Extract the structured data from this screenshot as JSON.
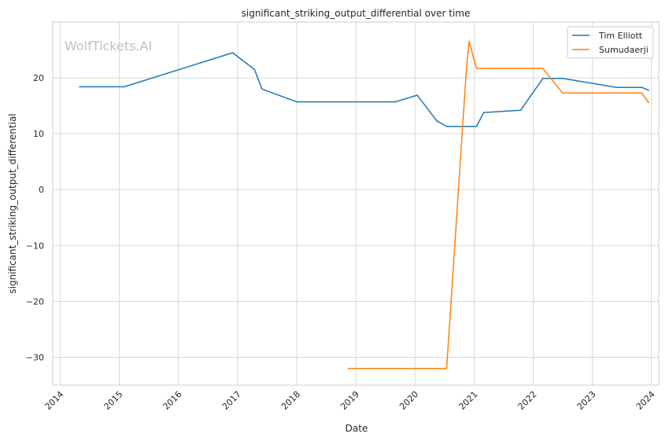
{
  "chart_data": {
    "type": "line",
    "title": "significant_striking_output_differential over time",
    "xlabel": "Date",
    "ylabel": "significant_striking_output_differential",
    "watermark": "WolfTickets.AI",
    "x_type": "date",
    "xlim": [
      "2013-11-16",
      "2024-02-15"
    ],
    "ylim": [
      -35,
      30
    ],
    "x_ticks": [
      {
        "date": "2014-01-01",
        "label": "2014"
      },
      {
        "date": "2015-01-01",
        "label": "2015"
      },
      {
        "date": "2016-01-01",
        "label": "2016"
      },
      {
        "date": "2017-01-01",
        "label": "2017"
      },
      {
        "date": "2018-01-01",
        "label": "2018"
      },
      {
        "date": "2019-01-01",
        "label": "2019"
      },
      {
        "date": "2020-01-01",
        "label": "2020"
      },
      {
        "date": "2021-01-01",
        "label": "2021"
      },
      {
        "date": "2022-01-01",
        "label": "2022"
      },
      {
        "date": "2023-01-01",
        "label": "2023"
      },
      {
        "date": "2024-01-01",
        "label": "2024"
      }
    ],
    "y_ticks": [
      {
        "value": -30,
        "label": "−30"
      },
      {
        "value": -20,
        "label": "−20"
      },
      {
        "value": -10,
        "label": "−10"
      },
      {
        "value": 0,
        "label": "0"
      },
      {
        "value": 10,
        "label": "10"
      },
      {
        "value": 20,
        "label": "20"
      }
    ],
    "grid": true,
    "legend_position": "top-right",
    "series": [
      {
        "name": "Tim Elliott",
        "color": "#1f77b4",
        "points": [
          {
            "x": "2014-05-01",
            "y": 18.4
          },
          {
            "x": "2015-02-01",
            "y": 18.4
          },
          {
            "x": "2016-12-01",
            "y": 24.5
          },
          {
            "x": "2017-04-15",
            "y": 21.5
          },
          {
            "x": "2017-06-01",
            "y": 18.0
          },
          {
            "x": "2018-01-01",
            "y": 15.7
          },
          {
            "x": "2019-09-01",
            "y": 15.7
          },
          {
            "x": "2020-01-15",
            "y": 16.9
          },
          {
            "x": "2020-05-15",
            "y": 12.3
          },
          {
            "x": "2020-07-15",
            "y": 11.3
          },
          {
            "x": "2021-01-15",
            "y": 11.3
          },
          {
            "x": "2021-03-01",
            "y": 13.8
          },
          {
            "x": "2021-10-15",
            "y": 14.2
          },
          {
            "x": "2022-03-01",
            "y": 19.9
          },
          {
            "x": "2022-07-01",
            "y": 19.9
          },
          {
            "x": "2023-06-01",
            "y": 18.3
          },
          {
            "x": "2023-11-01",
            "y": 18.3
          },
          {
            "x": "2023-12-15",
            "y": 17.8
          }
        ]
      },
      {
        "name": "Sumudaerji",
        "color": "#ff7f0e",
        "points": [
          {
            "x": "2018-11-15",
            "y": -32.0
          },
          {
            "x": "2020-07-15",
            "y": -32.0
          },
          {
            "x": "2020-11-15",
            "y": 22.0
          },
          {
            "x": "2020-12-01",
            "y": 26.5
          },
          {
            "x": "2021-01-15",
            "y": 21.7
          },
          {
            "x": "2022-03-01",
            "y": 21.7
          },
          {
            "x": "2022-07-01",
            "y": 17.3
          },
          {
            "x": "2023-11-01",
            "y": 17.3
          },
          {
            "x": "2023-12-15",
            "y": 15.6
          }
        ]
      }
    ]
  }
}
